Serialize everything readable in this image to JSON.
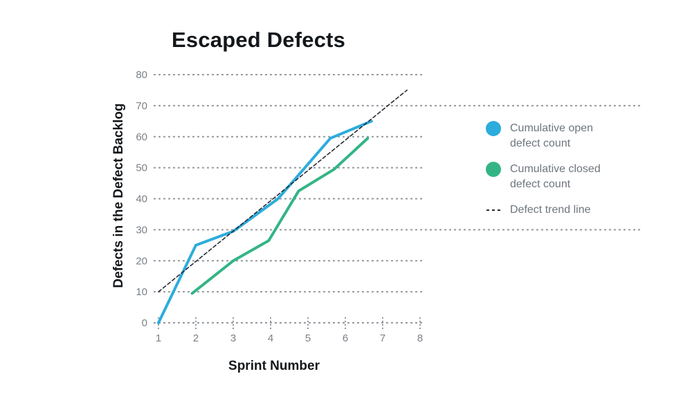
{
  "chart_data": {
    "type": "line",
    "title": "Escaped Defects",
    "xlabel": "Sprint Number",
    "ylabel": "Defects in the Defect Backlog",
    "x_ticks": [
      1,
      2,
      3,
      4,
      5,
      6,
      7,
      8
    ],
    "y_ticks": [
      0,
      10,
      20,
      30,
      40,
      50,
      60,
      70,
      80
    ],
    "xlim": [
      1,
      8
    ],
    "ylim": [
      0,
      80
    ],
    "grid": {
      "style": "dashed",
      "orientation": "horizontal",
      "color": "#94999E",
      "full_width_rows": [
        30,
        70
      ]
    },
    "series": [
      {
        "name": "Cumulative open defect count",
        "color": "#2CACDC",
        "style": "solid",
        "points": [
          [
            1,
            0
          ],
          [
            2,
            25
          ],
          [
            3,
            29.5
          ],
          [
            4.2,
            40
          ],
          [
            5.6,
            59.5
          ],
          [
            6.7,
            65
          ]
        ]
      },
      {
        "name": "Cumulative closed defect count",
        "color": "#34B485",
        "style": "solid",
        "points": [
          [
            1.9,
            9.5
          ],
          [
            3,
            20
          ],
          [
            3.95,
            26.5
          ],
          [
            4.75,
            42.5
          ],
          [
            5.7,
            49.5
          ],
          [
            6.6,
            59.5
          ]
        ]
      },
      {
        "name": "Defect trend line",
        "color": "#262B33",
        "style": "dashed",
        "points": [
          [
            1,
            10
          ],
          [
            7.65,
            75
          ]
        ]
      }
    ],
    "legend_position": "right"
  },
  "legend": {
    "items": [
      {
        "label": "Cumulative open defect count",
        "marker": "circle",
        "color": "#2CACDC"
      },
      {
        "label": "Cumulative closed defect count",
        "marker": "circle",
        "color": "#34B485"
      },
      {
        "label": "Defect trend line",
        "marker": "dash",
        "color": "#262B33"
      }
    ]
  },
  "colors": {
    "background": "#ffffff",
    "title_text": "#14171A",
    "tick_text": "#7A8087",
    "legend_text": "#6E757D",
    "gridline": "#94999E"
  }
}
